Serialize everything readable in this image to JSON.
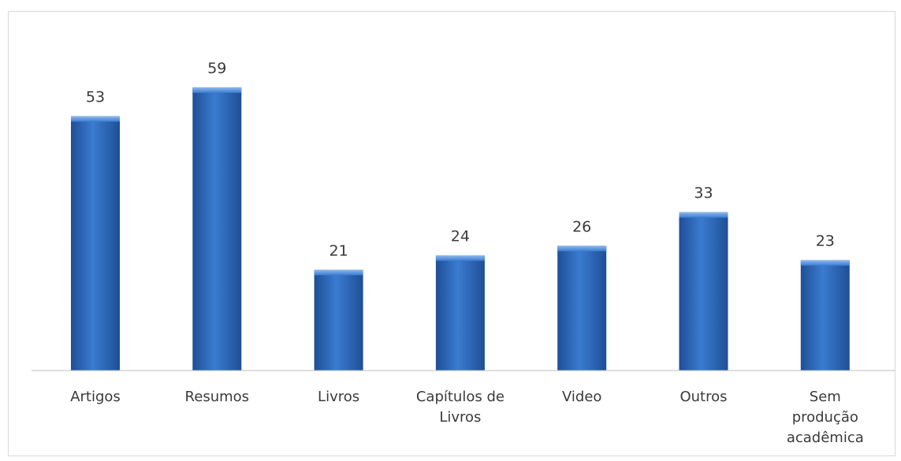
{
  "chart_data": {
    "type": "bar",
    "title": "",
    "xlabel": "",
    "ylabel": "",
    "categories": [
      [
        "Artigos"
      ],
      [
        "Resumos"
      ],
      [
        "Livros"
      ],
      [
        "Capítulos de",
        "Livros"
      ],
      [
        "Video"
      ],
      [
        "Outros"
      ],
      [
        "Sem",
        "produção",
        "acadêmica"
      ]
    ],
    "values": [
      53,
      59,
      21,
      24,
      26,
      33,
      23
    ],
    "ylim": [
      0,
      65
    ],
    "grid": false,
    "legend": "none",
    "bar_color": "#2e6bc0",
    "bar_highlight": "#5b93dd",
    "axis_color": "#bfbfbf"
  }
}
